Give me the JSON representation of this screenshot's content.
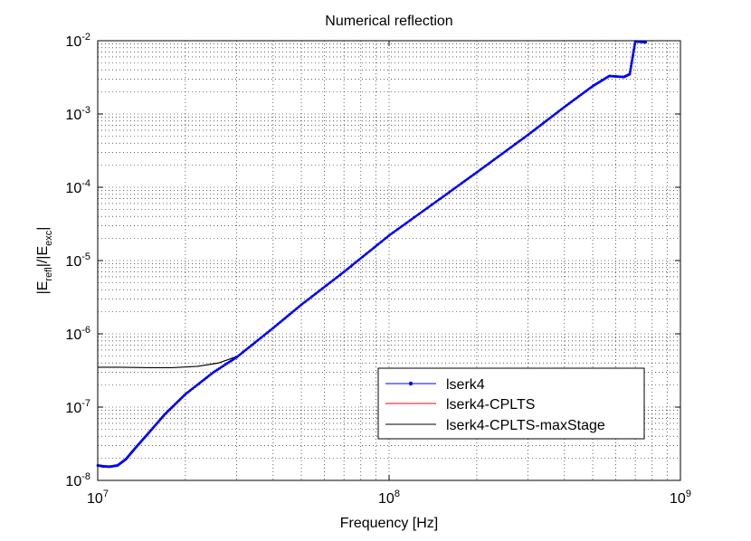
{
  "chart_data": {
    "type": "line",
    "title": "Numerical reflection",
    "xlabel": "Frequency [Hz]",
    "ylabel": {
      "base": "|E",
      "sub1": "refl",
      "mid": "|/|E",
      "sub2": "exc",
      "end": "|"
    },
    "xscale": "log",
    "yscale": "log",
    "xlim": [
      10000000,
      1000000000
    ],
    "ylim": [
      1e-08,
      0.01
    ],
    "grid": true,
    "legend_position": "lower-right",
    "x_ticks": [
      {
        "base": "10",
        "exp": "7"
      },
      {
        "base": "10",
        "exp": "8"
      },
      {
        "base": "10",
        "exp": "9"
      }
    ],
    "y_ticks": [
      {
        "base": "10",
        "exp": "-8"
      },
      {
        "base": "10",
        "exp": "-7"
      },
      {
        "base": "10",
        "exp": "-6"
      },
      {
        "base": "10",
        "exp": "-5"
      },
      {
        "base": "10",
        "exp": "-4"
      },
      {
        "base": "10",
        "exp": "-3"
      },
      {
        "base": "10",
        "exp": "-2"
      }
    ],
    "series": [
      {
        "name": "lserk4",
        "color": "#0000ff",
        "marker": "dot",
        "x": [
          10000000,
          10500000,
          11000000,
          11700000,
          12500000,
          13500000,
          15000000,
          17000000,
          20000000,
          25000000,
          30000000,
          40000000,
          50000000,
          70000000,
          100000000,
          150000000,
          200000000,
          300000000,
          400000000,
          500000000,
          570000000,
          640000000,
          670000000,
          700000000,
          760000000
        ],
        "y": [
          1.6e-08,
          1.55e-08,
          1.54e-08,
          1.6e-08,
          1.95e-08,
          2.8e-08,
          4.5e-08,
          8e-08,
          1.5e-07,
          3e-07,
          4.8e-07,
          1.2e-06,
          2.5e-06,
          7e-06,
          2.2e-05,
          7e-05,
          0.00016,
          0.00052,
          0.00125,
          0.0024,
          0.0033,
          0.0032,
          0.0035,
          0.0098,
          0.0095
        ]
      },
      {
        "name": "lserk4-CPLTS",
        "color": "#ff0000",
        "marker": "none",
        "x": [
          10000000,
          10500000,
          11000000,
          11700000,
          12500000,
          13500000,
          15000000,
          17000000,
          20000000,
          25000000,
          30000000,
          40000000,
          50000000,
          70000000,
          100000000,
          150000000,
          200000000,
          300000000,
          400000000,
          500000000,
          570000000,
          640000000,
          670000000,
          700000000,
          760000000
        ],
        "y": [
          1.6e-08,
          1.55e-08,
          1.54e-08,
          1.6e-08,
          1.95e-08,
          2.8e-08,
          4.5e-08,
          8e-08,
          1.5e-07,
          3e-07,
          4.8e-07,
          1.2e-06,
          2.5e-06,
          7e-06,
          2.2e-05,
          7e-05,
          0.00016,
          0.00052,
          0.00125,
          0.0024,
          0.0033,
          0.0032,
          0.0035,
          0.0098,
          0.0095
        ]
      },
      {
        "name": "lserk4-CPLTS-maxStage",
        "color": "#000000",
        "marker": "none",
        "x": [
          10000000,
          12000000,
          15000000,
          18000000,
          22000000,
          26000000,
          30000000,
          40000000,
          50000000,
          70000000,
          100000000,
          150000000,
          200000000,
          300000000,
          400000000,
          500000000,
          570000000,
          640000000,
          670000000,
          700000000,
          760000000
        ],
        "y": [
          3.5e-07,
          3.5e-07,
          3.45e-07,
          3.45e-07,
          3.6e-07,
          4e-07,
          4.9e-07,
          1.2e-06,
          2.5e-06,
          7e-06,
          2.2e-05,
          7e-05,
          0.00016,
          0.00052,
          0.00125,
          0.0024,
          0.0033,
          0.0032,
          0.0035,
          0.0098,
          0.0095
        ]
      }
    ]
  }
}
